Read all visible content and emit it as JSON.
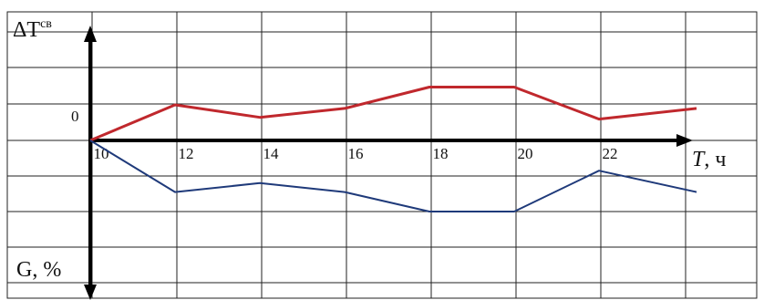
{
  "chart_data": {
    "type": "line",
    "xlabel_italic": "T",
    "xlabel_unit": ", ч",
    "ylabel_top_base": "ΔT",
    "ylabel_top_sup": "св",
    "ylabel_bottom": "G, %",
    "y_zero_label": "0",
    "x_ticks": [
      "10",
      "12",
      "14",
      "16",
      "18",
      "20",
      "22"
    ],
    "x_tick_values": [
      10,
      12,
      14,
      16,
      18,
      20,
      22
    ],
    "xlim": [
      10,
      24.3
    ],
    "grid": true,
    "series": [
      {
        "color": "#c0282d",
        "x": [
          10,
          12,
          14,
          16,
          18,
          20,
          22,
          24.3
        ],
        "y": [
          0,
          1.0,
          0.65,
          0.9,
          1.5,
          1.5,
          0.6,
          0.9
        ]
      },
      {
        "color": "#1f3a7a",
        "x": [
          10,
          12,
          14,
          16,
          18,
          20,
          22,
          24.3
        ],
        "y": [
          0,
          -1.45,
          -1.2,
          -1.45,
          -2.0,
          -2.0,
          -0.85,
          -1.45
        ]
      }
    ]
  }
}
